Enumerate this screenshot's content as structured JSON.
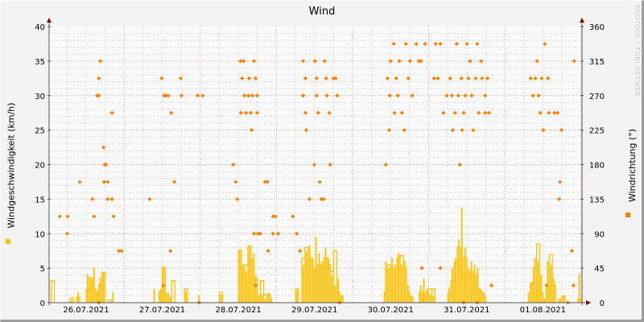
{
  "chart_data": {
    "type": "bar",
    "title": "Wind",
    "ylabel": "Windgeschwindigkeit (km/h)",
    "ylabel_right": "Windrichtung (°)",
    "watermark": "RRDTOOL / TOBI OETIKER",
    "ylim": [
      0,
      40
    ],
    "ylim_right": [
      0,
      360
    ],
    "yticks": [
      0,
      5,
      10,
      15,
      20,
      25,
      30,
      35,
      40
    ],
    "yticks_right": [
      0,
      45,
      90,
      135,
      180,
      225,
      270,
      315,
      360
    ],
    "xlim": [
      "2021-07-26 00:20",
      "2021-08-02 00:20"
    ],
    "xtick_labels": [
      "26.07.2021",
      "27.07.2021",
      "28.07.2021",
      "29.07.2021",
      "30.07.2021",
      "31.07.2021",
      "01.08.2021"
    ],
    "grid": true,
    "colors": {
      "speed_fill": "#ffc000",
      "speed_line": "#ffc000",
      "direction": "#ff8000",
      "major_grid": "#e0a0a0",
      "minor_grid": "#d0d0d0",
      "arrow": "#800000"
    },
    "speed": [
      [
        "2021-07-26 01:00",
        0,
        3.2
      ],
      [
        "2021-07-26 07:00",
        0.4,
        0.7
      ],
      [
        "2021-07-26 09:00",
        1.5,
        0.8
      ],
      [
        "2021-07-26 12:00",
        4.1,
        1.9
      ],
      [
        "2021-07-26 13:00",
        3.5,
        3.6
      ],
      [
        "2021-07-26 14:00",
        5.1,
        2.0
      ],
      [
        "2021-07-26 15:00",
        1.8,
        1.2
      ],
      [
        "2021-07-26 16:00",
        3.6,
        2.6
      ],
      [
        "2021-07-26 17:00",
        4.3,
        4.4
      ],
      [
        "2021-07-26 19:00",
        0,
        0.4
      ],
      [
        "2021-07-26 20:00",
        1.6,
        0
      ],
      [
        "2021-07-27 09:00",
        2.0,
        0
      ],
      [
        "2021-07-27 11:00",
        2.0,
        1.6
      ],
      [
        "2021-07-27 12:00",
        5.2,
        5.1
      ],
      [
        "2021-07-27 13:00",
        1.2,
        1.3
      ],
      [
        "2021-07-27 14:00",
        0.7,
        0.7
      ],
      [
        "2021-07-27 15:00",
        0,
        3.2
      ],
      [
        "2021-07-27 19:00",
        1.6,
        2.0
      ],
      [
        "2021-07-27 23:00",
        1.1,
        0
      ],
      [
        "2021-07-28 06:00",
        1.2,
        1.5
      ],
      [
        "2021-07-28 12:00",
        7.5,
        7.6
      ],
      [
        "2021-07-28 13:00",
        5.5,
        4.0
      ],
      [
        "2021-07-28 14:00",
        4.5,
        5.5
      ],
      [
        "2021-07-28 15:00",
        8.2,
        8.2
      ],
      [
        "2021-07-28 16:00",
        6.5,
        7.0
      ],
      [
        "2021-07-28 17:00",
        4.0,
        3.5
      ],
      [
        "2021-07-28 18:00",
        1.0,
        0.5
      ],
      [
        "2021-07-28 19:00",
        1.2,
        3.2
      ],
      [
        "2021-07-28 20:00",
        0.5,
        1.2
      ],
      [
        "2021-07-28 21:00",
        1.5,
        1.2
      ],
      [
        "2021-07-28 22:00",
        0.6,
        0
      ],
      [
        "2021-07-29 06:00",
        1.8,
        2.0
      ],
      [
        "2021-07-29 08:00",
        5.5,
        6.5
      ],
      [
        "2021-07-29 09:00",
        7.5,
        8.0
      ],
      [
        "2021-07-29 10:00",
        8.3,
        6.5
      ],
      [
        "2021-07-29 11:00",
        6.5,
        4.4
      ],
      [
        "2021-07-29 12:00",
        9.5,
        5.0
      ],
      [
        "2021-07-29 13:00",
        7.2,
        5.5
      ],
      [
        "2021-07-29 14:00",
        6.0,
        5.0
      ],
      [
        "2021-07-29 15:00",
        8.0,
        6.5
      ],
      [
        "2021-07-29 16:00",
        6.5,
        5.5
      ],
      [
        "2021-07-29 17:00",
        4.0,
        4.5
      ],
      [
        "2021-07-29 18:00",
        2.5,
        7.5
      ],
      [
        "2021-07-29 19:00",
        3.5,
        1.5
      ],
      [
        "2021-07-29 20:00",
        1.0,
        1.0
      ],
      [
        "2021-07-30 10:00",
        6.0,
        1.5
      ],
      [
        "2021-07-30 11:00",
        5.0,
        5.5
      ],
      [
        "2021-07-30 12:00",
        6.5,
        5.0
      ],
      [
        "2021-07-30 13:00",
        5.5,
        4.0
      ],
      [
        "2021-07-30 14:00",
        7.2,
        6.5
      ],
      [
        "2021-07-30 15:00",
        5.5,
        6.8
      ],
      [
        "2021-07-30 16:00",
        6.0,
        5.0
      ],
      [
        "2021-07-30 17:00",
        2.5,
        1.5
      ],
      [
        "2021-07-30 18:00",
        1.0,
        0.8
      ],
      [
        "2021-07-30 21:00",
        2.5,
        1.5
      ],
      [
        "2021-07-30 22:00",
        3.5,
        0.5
      ],
      [
        "2021-07-30 23:00",
        2.0,
        1.5
      ],
      [
        "2021-07-31 00:00",
        1.2,
        2.0
      ],
      [
        "2021-07-31 01:00",
        1.0,
        2.0
      ],
      [
        "2021-07-31 06:00",
        2.2,
        1.3
      ],
      [
        "2021-07-31 07:00",
        5.0,
        3.2
      ],
      [
        "2021-07-31 08:00",
        6.5,
        5.8
      ],
      [
        "2021-07-31 09:00",
        9.2,
        8.0
      ],
      [
        "2021-07-31 10:00",
        13.8,
        3.5
      ],
      [
        "2021-07-31 11:00",
        8.0,
        6.5
      ],
      [
        "2021-07-31 12:00",
        5.0,
        3.5
      ],
      [
        "2021-07-31 13:00",
        6.0,
        4.5
      ],
      [
        "2021-07-31 14:00",
        5.5,
        4.0
      ],
      [
        "2021-07-31 15:00",
        5.0,
        2.0
      ],
      [
        "2021-07-31 16:00",
        2.0,
        1.5
      ],
      [
        "2021-07-31 17:00",
        1.5,
        0.8
      ],
      [
        "2021-08-01 07:00",
        1.5,
        0
      ],
      [
        "2021-08-01 08:00",
        3.0,
        2.8
      ],
      [
        "2021-08-01 09:00",
        6.5,
        5.0
      ],
      [
        "2021-08-01 10:00",
        6.0,
        8.5
      ],
      [
        "2021-08-01 11:00",
        4.0,
        1.5
      ],
      [
        "2021-08-01 12:00",
        0.5,
        0.5
      ],
      [
        "2021-08-01 13:00",
        6.0,
        2.0
      ],
      [
        "2021-08-01 14:00",
        5.5,
        7.0
      ],
      [
        "2021-08-01 15:00",
        3.5,
        2.5
      ],
      [
        "2021-08-01 17:00",
        0.5,
        0.5
      ],
      [
        "2021-08-01 18:00",
        1.0,
        1.0
      ],
      [
        "2021-08-01 23:00",
        4.2,
        0.5
      ]
    ],
    "direction": [
      [
        "2021-07-26 03:40",
        112.5
      ],
      [
        "2021-07-26 06:10",
        112.5
      ],
      [
        "2021-07-26 06:00",
        90
      ],
      [
        "2021-07-26 10:00",
        157.5
      ],
      [
        "2021-07-26 14:00",
        135
      ],
      [
        "2021-07-26 14:30",
        112.5
      ],
      [
        "2021-07-26 15:30",
        270
      ],
      [
        "2021-07-26 16:00",
        292.5
      ],
      [
        "2021-07-26 16:30",
        315
      ],
      [
        "2021-07-26 16:00",
        270
      ],
      [
        "2021-07-26 16:00",
        0
      ],
      [
        "2021-07-26 17:30",
        202.5
      ],
      [
        "2021-07-26 17:50",
        180
      ],
      [
        "2021-07-26 18:20",
        180
      ],
      [
        "2021-07-26 17:40",
        157.5
      ],
      [
        "2021-07-26 18:50",
        157.5
      ],
      [
        "2021-07-26 18:50",
        135
      ],
      [
        "2021-07-26 20:10",
        135
      ],
      [
        "2021-07-26 20:40",
        112.5
      ],
      [
        "2021-07-26 20:10",
        247.5
      ],
      [
        "2021-07-26 22:20",
        67.5
      ],
      [
        "2021-07-26 23:10",
        67.5
      ],
      [
        "2021-07-27 08:00",
        135
      ],
      [
        "2021-07-27 11:50",
        292.5
      ],
      [
        "2021-07-27 12:20",
        22.5
      ],
      [
        "2021-07-27 12:35",
        270
      ],
      [
        "2021-07-27 13:05",
        270
      ],
      [
        "2021-07-27 13:50",
        270
      ],
      [
        "2021-07-27 14:35",
        67.5
      ],
      [
        "2021-07-27 14:50",
        247.5
      ],
      [
        "2021-07-27 15:50",
        157.5
      ],
      [
        "2021-07-27 17:50",
        292.5
      ],
      [
        "2021-07-27 18:05",
        270
      ],
      [
        "2021-07-27 23:10",
        270
      ],
      [
        "2021-07-27 23:40",
        0
      ],
      [
        "2021-07-28 00:45",
        270
      ],
      [
        "2021-07-28 10:20",
        180
      ],
      [
        "2021-07-28 11:10",
        157.5
      ],
      [
        "2021-07-28 11:40",
        135
      ],
      [
        "2021-07-28 12:40",
        315
      ],
      [
        "2021-07-28 12:50",
        247.5
      ],
      [
        "2021-07-28 13:10",
        292.5
      ],
      [
        "2021-07-28 13:40",
        315
      ],
      [
        "2021-07-28 13:55",
        270
      ],
      [
        "2021-07-28 14:25",
        247.5
      ],
      [
        "2021-07-28 15:10",
        270
      ],
      [
        "2021-07-28 15:25",
        292.5
      ],
      [
        "2021-07-28 15:55",
        247.5
      ],
      [
        "2021-07-28 16:10",
        225
      ],
      [
        "2021-07-28 16:25",
        270
      ],
      [
        "2021-07-28 16:55",
        315
      ],
      [
        "2021-07-28 16:55",
        90
      ],
      [
        "2021-07-28 17:25",
        292.5
      ],
      [
        "2021-07-28 17:25",
        22.5
      ],
      [
        "2021-07-28 17:55",
        270
      ],
      [
        "2021-07-28 17:55",
        247.5
      ],
      [
        "2021-07-28 18:10",
        90
      ],
      [
        "2021-07-28 18:55",
        90
      ],
      [
        "2021-07-28 20:25",
        157.5
      ],
      [
        "2021-07-28 21:10",
        157.5
      ],
      [
        "2021-07-28 21:25",
        67.5
      ],
      [
        "2021-07-28 22:55",
        112.5
      ],
      [
        "2021-07-28 23:40",
        112.5
      ],
      [
        "2021-07-28 22:55",
        90
      ],
      [
        "2021-07-29 00:35",
        90
      ],
      [
        "2021-07-29 05:10",
        112.5
      ],
      [
        "2021-07-29 06:25",
        90
      ],
      [
        "2021-07-29 07:25",
        67.5
      ],
      [
        "2021-07-29 08:25",
        315
      ],
      [
        "2021-07-29 09:10",
        292.5
      ],
      [
        "2021-07-29 08:25",
        270
      ],
      [
        "2021-07-29 09:10",
        247.5
      ],
      [
        "2021-07-29 09:25",
        225
      ],
      [
        "2021-07-29 10:25",
        135
      ],
      [
        "2021-07-29 11:55",
        180
      ],
      [
        "2021-07-29 12:10",
        315
      ],
      [
        "2021-07-29 12:40",
        292.5
      ],
      [
        "2021-07-29 12:40",
        270
      ],
      [
        "2021-07-29 13:10",
        247.5
      ],
      [
        "2021-07-29 13:40",
        157.5
      ],
      [
        "2021-07-29 14:10",
        135
      ],
      [
        "2021-07-29 14:55",
        135
      ],
      [
        "2021-07-29 15:10",
        315
      ],
      [
        "2021-07-29 15:40",
        292.5
      ],
      [
        "2021-07-29 15:55",
        270
      ],
      [
        "2021-07-29 16:40",
        247.5
      ],
      [
        "2021-07-29 16:55",
        180
      ],
      [
        "2021-07-29 17:55",
        292.5
      ],
      [
        "2021-07-29 18:40",
        292.5
      ],
      [
        "2021-07-29 19:10",
        270
      ],
      [
        "2021-07-29 19:55",
        0
      ],
      [
        "2021-07-30 10:30",
        180
      ],
      [
        "2021-07-30 11:00",
        292.5
      ],
      [
        "2021-07-30 11:30",
        225
      ],
      [
        "2021-07-30 11:45",
        270
      ],
      [
        "2021-07-30 12:00",
        315
      ],
      [
        "2021-07-30 13:00",
        337.5
      ],
      [
        "2021-07-30 13:15",
        247.5
      ],
      [
        "2021-07-30 13:45",
        292.5
      ],
      [
        "2021-07-30 14:15",
        270
      ],
      [
        "2021-07-30 14:45",
        315
      ],
      [
        "2021-07-30 15:35",
        247.5
      ],
      [
        "2021-07-30 16:20",
        225
      ],
      [
        "2021-07-30 16:50",
        337.5
      ],
      [
        "2021-07-30 17:35",
        292.5
      ],
      [
        "2021-07-30 18:05",
        315
      ],
      [
        "2021-07-30 18:50",
        270
      ],
      [
        "2021-07-30 20:05",
        337.5
      ],
      [
        "2021-07-30 20:50",
        315
      ],
      [
        "2021-07-30 21:35",
        315
      ],
      [
        "2021-07-30 21:50",
        45
      ],
      [
        "2021-07-30 22:50",
        337.5
      ],
      [
        "2021-07-31 01:40",
        292.5
      ],
      [
        "2021-07-31 02:10",
        337.5
      ],
      [
        "2021-07-31 02:55",
        292.5
      ],
      [
        "2021-07-31 03:40",
        337.5
      ],
      [
        "2021-07-31 03:40",
        45
      ],
      [
        "2021-07-31 04:40",
        247.5
      ],
      [
        "2021-07-31 05:40",
        270
      ],
      [
        "2021-07-31 06:48",
        292.5
      ],
      [
        "2021-07-31 07:18",
        270
      ],
      [
        "2021-07-31 07:33",
        225
      ],
      [
        "2021-07-31 08:18",
        247.5
      ],
      [
        "2021-07-31 08:48",
        337.5
      ],
      [
        "2021-07-31 09:18",
        270
      ],
      [
        "2021-07-31 09:48",
        180
      ],
      [
        "2021-07-31 10:18",
        292.5
      ],
      [
        "2021-07-31 10:33",
        225
      ],
      [
        "2021-07-31 11:03",
        247.5
      ],
      [
        "2021-07-31 11:03",
        0
      ],
      [
        "2021-07-31 11:33",
        270
      ],
      [
        "2021-07-31 12:03",
        337.5
      ],
      [
        "2021-07-31 12:33",
        292.5
      ],
      [
        "2021-07-31 13:03",
        315
      ],
      [
        "2021-07-31 13:33",
        270
      ],
      [
        "2021-07-31 14:03",
        225
      ],
      [
        "2021-07-31 14:48",
        292.5
      ],
      [
        "2021-07-31 15:18",
        337.5
      ],
      [
        "2021-07-31 15:18",
        0
      ],
      [
        "2021-07-31 15:48",
        247.5
      ],
      [
        "2021-07-31 16:33",
        315
      ],
      [
        "2021-07-31 16:48",
        292.5
      ],
      [
        "2021-07-31 17:48",
        247.5
      ],
      [
        "2021-07-31 17:48",
        270
      ],
      [
        "2021-07-31 18:33",
        292.5
      ],
      [
        "2021-07-31 19:03",
        247.5
      ],
      [
        "2021-07-31 19:48",
        22.5
      ],
      [
        "2021-08-01 08:08",
        292.5
      ],
      [
        "2021-08-01 08:53",
        270
      ],
      [
        "2021-08-01 09:38",
        292.5
      ],
      [
        "2021-08-01 10:08",
        315
      ],
      [
        "2021-08-01 10:38",
        270
      ],
      [
        "2021-08-01 11:08",
        247.5
      ],
      [
        "2021-08-01 11:38",
        292.5
      ],
      [
        "2021-08-01 12:08",
        225
      ],
      [
        "2021-08-01 12:38",
        337.5
      ],
      [
        "2021-08-01 13:08",
        22.5
      ],
      [
        "2021-08-01 13:38",
        292.5
      ],
      [
        "2021-08-01 13:53",
        247.5
      ],
      [
        "2021-08-01 15:38",
        247.5
      ],
      [
        "2021-08-01 16:38",
        247.5
      ],
      [
        "2021-08-01 17:08",
        135
      ],
      [
        "2021-08-01 17:23",
        157.5
      ],
      [
        "2021-08-01 17:53",
        225
      ],
      [
        "2021-08-01 19:53",
        0
      ],
      [
        "2021-08-01 21:08",
        67.5
      ],
      [
        "2021-08-01 21:38",
        22.5
      ],
      [
        "2021-08-01 21:53",
        315
      ]
    ]
  }
}
